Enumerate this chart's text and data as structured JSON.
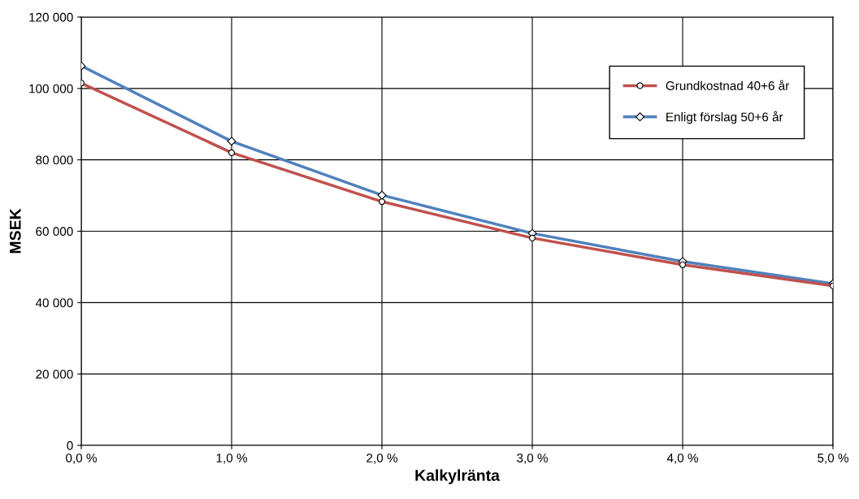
{
  "chart_data": {
    "type": "line",
    "xlabel": "Kalkylränta",
    "ylabel": "MSEK",
    "x": [
      0,
      1,
      2,
      3,
      4,
      5
    ],
    "series": [
      {
        "name": "Grundkostnad 40+6 år",
        "color": "#c0504d",
        "marker": "circle",
        "values": [
          101500,
          82000,
          68300,
          58100,
          50600,
          44700
        ]
      },
      {
        "name": "Enligt förslag 50+6 år",
        "color": "#4f81bd",
        "marker": "diamond",
        "values": [
          106300,
          85200,
          70100,
          59400,
          51500,
          45300
        ]
      }
    ],
    "xlim": [
      0,
      5
    ],
    "xticks": [
      {
        "value": 0,
        "label": "0,0 %"
      },
      {
        "value": 1,
        "label": "1,0 %"
      },
      {
        "value": 2,
        "label": "2,0 %"
      },
      {
        "value": 3,
        "label": "3,0 %"
      },
      {
        "value": 4,
        "label": "4,0 %"
      },
      {
        "value": 5,
        "label": "5,0 %"
      }
    ],
    "ylim": [
      0,
      120000
    ],
    "yticks": [
      0,
      {
        "value": 20000,
        "label": "20 000"
      },
      {
        "value": 40000,
        "label": "40 000"
      },
      {
        "value": 60000,
        "label": "60 000"
      },
      {
        "value": 80000,
        "label": "80 000"
      },
      {
        "value": 100000,
        "label": "100 000"
      },
      {
        "value": 120000,
        "label": "120 000"
      }
    ],
    "grid": true,
    "legend": "top right",
    "line_style": "solid"
  }
}
